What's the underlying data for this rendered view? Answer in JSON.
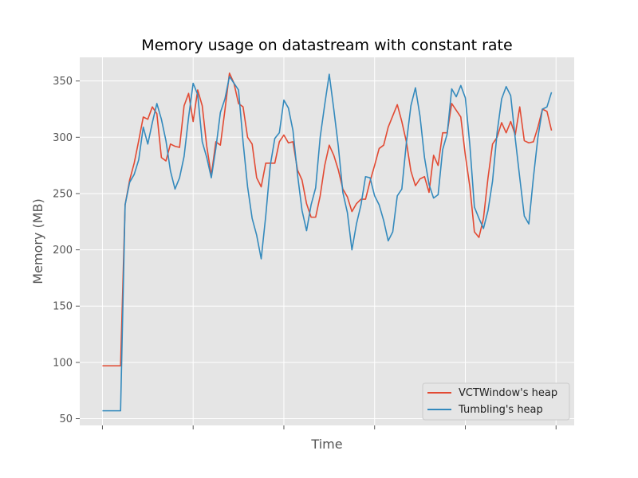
{
  "chart_data": {
    "type": "line",
    "title": "Memory usage on datastream with constant rate",
    "xlabel": "Time",
    "ylabel": "Memory (MB)",
    "xlim": [
      -5,
      104
    ],
    "ylim": [
      44,
      371
    ],
    "yticks": [
      50,
      100,
      150,
      200,
      250,
      300,
      350
    ],
    "xticks": [
      0,
      20,
      40,
      60,
      80,
      100
    ],
    "grid": true,
    "legend_position": "bottom-right",
    "series": [
      {
        "name": "VCTWindow's heap",
        "color": "#E24A33",
        "values": [
          97,
          97,
          97,
          97,
          97,
          240,
          262,
          277,
          297,
          318,
          316,
          327,
          321,
          282,
          279,
          294,
          292,
          291,
          328,
          339,
          314,
          342,
          328,
          292,
          266,
          296,
          293,
          324,
          357,
          348,
          330,
          327,
          300,
          294,
          264,
          256,
          277,
          277,
          277,
          296,
          302,
          295,
          296,
          271,
          262,
          241,
          229,
          229,
          248,
          275,
          293,
          284,
          271,
          254,
          247,
          234,
          241,
          245,
          245,
          261,
          275,
          290,
          293,
          309,
          319,
          329,
          314,
          296,
          270,
          257,
          263,
          265,
          251,
          284,
          275,
          304,
          304,
          330,
          324,
          318,
          284,
          256,
          216,
          211,
          228,
          264,
          294,
          300,
          313,
          304,
          314,
          302,
          327,
          297,
          295,
          296,
          309,
          325,
          323,
          306
        ]
      },
      {
        "name": "Tumbling's heap",
        "color": "#348ABD",
        "values": [
          57,
          57,
          57,
          57,
          57,
          240,
          260,
          267,
          280,
          309,
          294,
          313,
          330,
          316,
          297,
          270,
          254,
          264,
          283,
          318,
          348,
          338,
          296,
          282,
          264,
          290,
          322,
          334,
          354,
          348,
          342,
          296,
          256,
          228,
          213,
          192,
          230,
          275,
          299,
          304,
          333,
          326,
          306,
          267,
          235,
          217,
          240,
          255,
          300,
          329,
          356,
          325,
          292,
          251,
          233,
          200,
          223,
          240,
          265,
          264,
          248,
          240,
          226,
          208,
          216,
          248,
          254,
          295,
          328,
          344,
          319,
          282,
          258,
          246,
          249,
          289,
          303,
          343,
          336,
          346,
          335,
          293,
          238,
          228,
          219,
          235,
          261,
          304,
          334,
          345,
          337,
          299,
          264,
          230,
          223,
          264,
          300,
          325,
          327,
          340
        ]
      }
    ]
  }
}
